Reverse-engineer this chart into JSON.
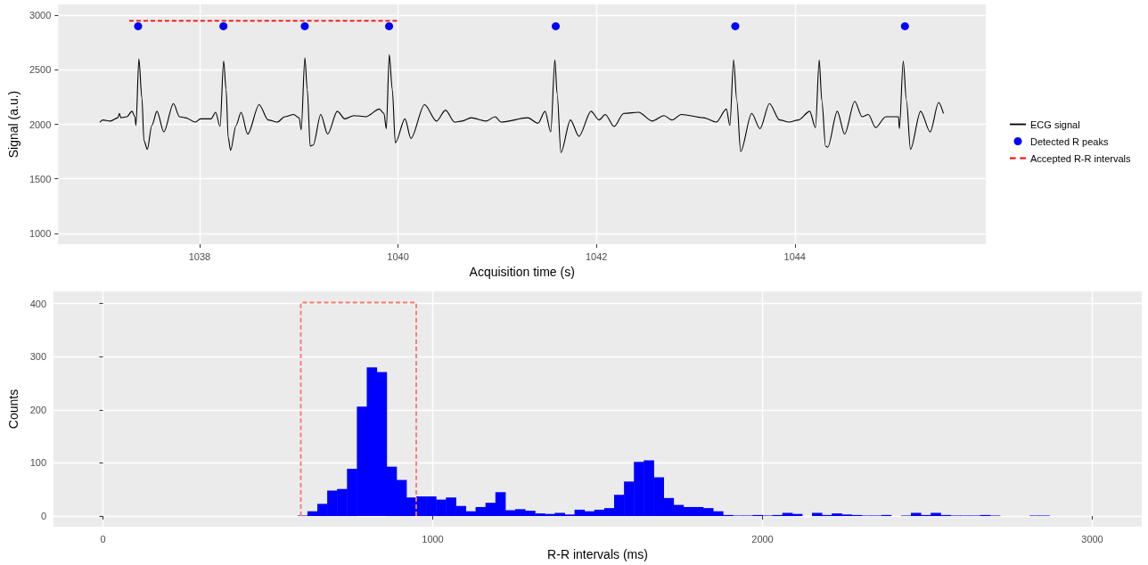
{
  "chart_data": [
    {
      "type": "line",
      "xlabel": "Acquisition time (s)",
      "ylabel": "Signal (a.u.)",
      "xlim": [
        1036.575,
        1045.925
      ],
      "ylim": [
        900,
        3100
      ],
      "xticks": [
        1038,
        1040,
        1042,
        1044
      ],
      "yticks": [
        1000,
        1500,
        2000,
        2500,
        3000
      ],
      "grid": true,
      "legend": "right",
      "marker": "none",
      "series": [
        {
          "name": "ECG signal",
          "color": "#000000",
          "x": [
            1036.994,
            1037.024,
            1037.1,
            1037.176,
            1037.191,
            1037.206,
            1037.267,
            1037.318,
            1037.348,
            1037.358,
            1037.388,
            1037.418,
            1037.439,
            1037.473,
            1037.518,
            1037.57,
            1037.639,
            1037.736,
            1037.797,
            1037.858,
            1037.958,
            1038.009,
            1038.115,
            1038.161,
            1038.206,
            1038.242,
            1038.267,
            1038.288,
            1038.312,
            1038.367,
            1038.418,
            1038.485,
            1038.6,
            1038.691,
            1038.782,
            1038.858,
            1038.948,
            1039.003,
            1039.024,
            1039.061,
            1039.085,
            1039.115,
            1039.145,
            1039.221,
            1039.291,
            1039.388,
            1039.464,
            1039.555,
            1039.676,
            1039.812,
            1039.858,
            1039.882,
            1039.912,
            1039.942,
            1039.973,
            1040.07,
            1040.13,
            1040.267,
            1040.388,
            1040.479,
            1040.57,
            1040.645,
            1040.736,
            1040.888,
            1040.979,
            1041.039,
            1041.307,
            1041.412,
            1041.482,
            1041.54,
            1041.581,
            1041.604,
            1041.642,
            1041.738,
            1041.824,
            1041.946,
            1042.026,
            1042.089,
            1042.179,
            1042.275,
            1042.425,
            1042.562,
            1042.681,
            1042.76,
            1042.856,
            1043.08,
            1043.208,
            1043.31,
            1043.345,
            1043.383,
            1043.415,
            1043.454,
            1043.565,
            1043.649,
            1043.744,
            1043.847,
            1043.942,
            1044.038,
            1044.15,
            1044.208,
            1044.246,
            1044.272,
            1044.31,
            1044.332,
            1044.428,
            1044.502,
            1044.604,
            1044.678,
            1044.741,
            1044.815,
            1044.917,
            1045.045,
            1045.054,
            1045.093,
            1045.125,
            1045.166,
            1045.268,
            1045.364,
            1045.45,
            1045.498
          ],
          "values": [
            2020,
            2040,
            2030,
            2060,
            2100,
            2060,
            2070,
            2120,
            2070,
            1990,
            2600,
            2240,
            1850,
            1770,
            1990,
            2120,
            1930,
            2190,
            2070,
            2060,
            2020,
            2050,
            2050,
            2110,
            1980,
            2580,
            2320,
            1880,
            1760,
            1990,
            2110,
            1910,
            2180,
            2040,
            2020,
            2070,
            2090,
            2060,
            1950,
            2610,
            2320,
            1800,
            1810,
            2090,
            1910,
            2120,
            2050,
            2080,
            2070,
            2140,
            2100,
            1960,
            2640,
            2320,
            1830,
            2050,
            1870,
            2180,
            2030,
            2130,
            2020,
            2030,
            2060,
            2030,
            2070,
            2020,
            2060,
            2010,
            2120,
            1930,
            2590,
            2280,
            1740,
            2040,
            1890,
            2120,
            2040,
            2090,
            1980,
            2100,
            2110,
            2030,
            2080,
            2040,
            2090,
            2060,
            2020,
            2140,
            1990,
            2590,
            2220,
            1750,
            2100,
            1960,
            2190,
            2040,
            2020,
            2040,
            2120,
            1970,
            2590,
            2220,
            1800,
            1790,
            2120,
            1910,
            2210,
            2070,
            2090,
            1970,
            2070,
            2070,
            1960,
            2580,
            2220,
            1770,
            2120,
            1930,
            2200,
            2100
          ]
        },
        {
          "name": "Detected R peaks",
          "type": "scatter",
          "marker": "circle",
          "color": "#0000ff",
          "x": [
            1037.38,
            1038.24,
            1039.06,
            1039.91,
            1041.59,
            1043.4,
            1045.11
          ],
          "values": [
            2900,
            2900,
            2900,
            2900,
            2900,
            2900,
            2900
          ]
        },
        {
          "name": "Accepted R-R intervals",
          "type": "line",
          "line_style": "dashed",
          "color": "#ff0000",
          "x": [
            1037.29,
            1039.99
          ],
          "values": [
            2950,
            2950
          ]
        }
      ]
    },
    {
      "type": "histogram",
      "xlabel": "R-R intervals (ms)",
      "ylabel": "Counts",
      "xlim": [
        -150,
        3150
      ],
      "ylim": [
        -20,
        423
      ],
      "xticks": [
        0,
        1000,
        2000,
        3000
      ],
      "yticks": [
        0,
        100,
        200,
        300,
        400
      ],
      "grid": true,
      "series": [
        {
          "color": "#0000ff",
          "bins": [
            590,
            620,
            650,
            680,
            710,
            740,
            770,
            800,
            830,
            860,
            890,
            920,
            950,
            980,
            1010,
            1040,
            1070,
            1100,
            1130,
            1160,
            1190,
            1220,
            1250,
            1280,
            1310,
            1340,
            1370,
            1400,
            1430,
            1460,
            1490,
            1520,
            1550,
            1580,
            1610,
            1640,
            1670,
            1700,
            1730,
            1760,
            1790,
            1820,
            1850,
            1880,
            1910,
            1940,
            1970,
            2000,
            2030,
            2060,
            2090,
            2120,
            2150,
            2180,
            2210,
            2240,
            2270,
            2300,
            2330,
            2360,
            2390,
            2420,
            2450,
            2480,
            2510,
            2540,
            2570,
            2600,
            2630,
            2660,
            2690,
            2720,
            2750,
            2780,
            2810,
            2840,
            2870
          ],
          "values": [
            1,
            9,
            23,
            48,
            51,
            89,
            206,
            280,
            271,
            93,
            68,
            35,
            37,
            37,
            31,
            35,
            19,
            9,
            17,
            25,
            45,
            11,
            13,
            10,
            5,
            4,
            6,
            3,
            12,
            9,
            12,
            15,
            40,
            65,
            102,
            105,
            73,
            34,
            21,
            17,
            17,
            15,
            9,
            2,
            1,
            1,
            2,
            1,
            2,
            6,
            4,
            0,
            6,
            2,
            5,
            3,
            2,
            1,
            1,
            2,
            0,
            1,
            6,
            2,
            6,
            2,
            1,
            1,
            1,
            2,
            1,
            0,
            0,
            0,
            1,
            1
          ]
        },
        {
          "type": "line",
          "line_style": "dashed",
          "color": "#f8766d",
          "x": [
            600,
            600,
            950,
            950
          ],
          "values": [
            0,
            402,
            402,
            0
          ]
        }
      ]
    }
  ]
}
